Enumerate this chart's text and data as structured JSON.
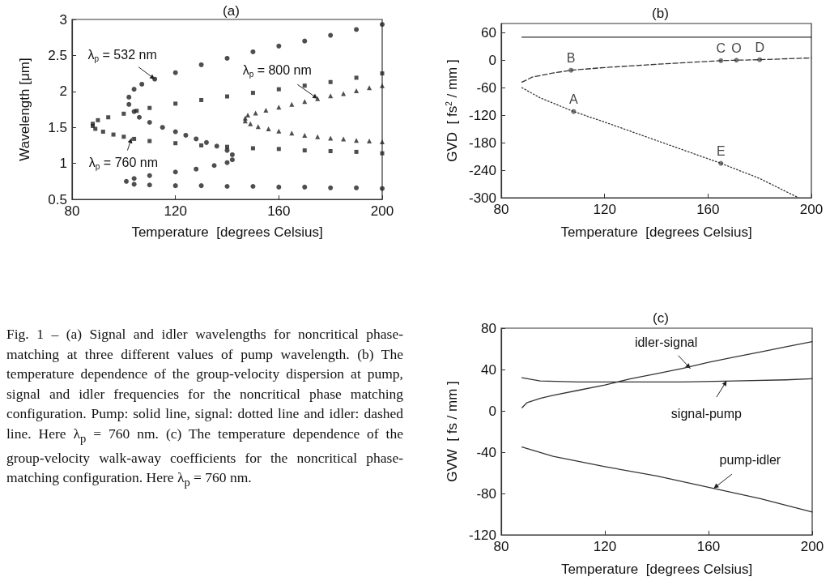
{
  "chart_data": [
    {
      "type": "scatter",
      "title": "(a)",
      "xlabel": "Temperature  [degrees Celsius]",
      "ylabel": "Wavelength [μm]",
      "xlim": [
        80,
        200
      ],
      "xticks": [
        80,
        120,
        160,
        200
      ],
      "ylim": [
        0.5,
        3.0
      ],
      "yticks": [
        0.5,
        1.0,
        1.5,
        2.0,
        2.5,
        3.0
      ],
      "grid": false,
      "series": [
        {
          "color": "#222222",
          "marker": "circle",
          "x": [
            200,
            190,
            180,
            170,
            160,
            150,
            140,
            130,
            120,
            110,
            104,
            101,
            104,
            110,
            120,
            128,
            135,
            140,
            142,
            142,
            140,
            136,
            132,
            128,
            124,
            120,
            115,
            110,
            106,
            104,
            102,
            102,
            104,
            107,
            112,
            120,
            130,
            140,
            150,
            160,
            170,
            180,
            190,
            200
          ],
          "values": [
            0.65,
            0.66,
            0.66,
            0.67,
            0.67,
            0.68,
            0.68,
            0.69,
            0.69,
            0.7,
            0.71,
            0.75,
            0.79,
            0.83,
            0.88,
            0.92,
            0.97,
            1.01,
            1.05,
            1.12,
            1.18,
            1.24,
            1.29,
            1.34,
            1.39,
            1.44,
            1.5,
            1.57,
            1.64,
            1.72,
            1.82,
            1.92,
            2.03,
            2.1,
            2.17,
            2.26,
            2.37,
            2.46,
            2.55,
            2.63,
            2.7,
            2.78,
            2.86,
            2.93
          ]
        },
        {
          "color": "#222222",
          "marker": "square",
          "x": [
            200,
            190,
            180,
            170,
            160,
            150,
            140,
            130,
            120,
            110,
            104,
            100,
            96,
            92,
            89,
            88,
            88,
            90,
            94,
            100,
            105,
            110,
            120,
            130,
            140,
            150,
            160,
            170,
            180,
            190,
            200
          ],
          "values": [
            1.14,
            1.16,
            1.17,
            1.18,
            1.2,
            1.21,
            1.23,
            1.25,
            1.28,
            1.31,
            1.34,
            1.37,
            1.4,
            1.44,
            1.48,
            1.52,
            1.55,
            1.6,
            1.64,
            1.69,
            1.73,
            1.77,
            1.83,
            1.88,
            1.93,
            1.98,
            2.03,
            2.08,
            2.13,
            2.19,
            2.25
          ]
        },
        {
          "color": "#222222",
          "marker": "triangle",
          "x": [
            200,
            195,
            190,
            185,
            180,
            175,
            170,
            165,
            160,
            156,
            152,
            149,
            147,
            147,
            148,
            151,
            155,
            160,
            165,
            170,
            175,
            180,
            185,
            190,
            195,
            200
          ],
          "values": [
            1.3,
            1.31,
            1.32,
            1.34,
            1.35,
            1.37,
            1.39,
            1.42,
            1.45,
            1.48,
            1.51,
            1.55,
            1.59,
            1.63,
            1.67,
            1.7,
            1.74,
            1.78,
            1.82,
            1.86,
            1.9,
            1.94,
            1.97,
            2.01,
            2.05,
            2.08
          ]
        }
      ],
      "annotations": [
        {
          "text": "λ$_{p}$ = 532 nm",
          "x": 112,
          "y": 2.17
        },
        {
          "text": "λ$_{p}$ = 800 nm",
          "x": 175,
          "y": 1.9
        },
        {
          "text": "λ$_{p}$ = 760 nm",
          "x": 103,
          "y": 1.35
        }
      ]
    },
    {
      "type": "line",
      "title": "(b)",
      "xlabel": "Temperature  [degrees Celsius]",
      "ylabel": "GVD  [ fs$^{2}$ / mm ]",
      "xlim": [
        80,
        200
      ],
      "xticks": [
        80,
        120,
        160,
        200
      ],
      "ylim": [
        -300,
        80
      ],
      "yticks": [
        -300,
        -240,
        -180,
        -120,
        -60,
        0,
        60
      ],
      "grid": false,
      "series": [
        {
          "color": "#333333",
          "line_style": "solid",
          "x": [
            88,
            200
          ],
          "values": [
            50,
            50
          ]
        },
        {
          "color": "#333333",
          "line_style": "dotted",
          "x": [
            88,
            95,
            108,
            120,
            140,
            165,
            180,
            195
          ],
          "values": [
            -60,
            -82,
            -112,
            -135,
            -175,
            -225,
            -258,
            -300
          ]
        },
        {
          "color": "#333333",
          "line_style": "dashed",
          "x": [
            88,
            92,
            100,
            107,
            120,
            140,
            165,
            171,
            180,
            200
          ],
          "values": [
            -48,
            -37,
            -28,
            -22,
            -16,
            -9,
            -1,
            0,
            1,
            5
          ]
        },
        {
          "type": "scatter",
          "color": "#555555",
          "marker": "circle",
          "x": [
            108,
            107,
            165,
            171,
            180,
            165
          ],
          "values": [
            -112,
            -22,
            -1,
            0,
            1,
            -225
          ],
          "value_labels": [
            "A",
            "B",
            "C",
            "O",
            "D",
            "E"
          ]
        }
      ]
    },
    {
      "type": "line",
      "title": "(c)",
      "xlabel": "Temperature  [degrees Celsius]",
      "ylabel": "GVW  [ fs / mm ]",
      "xlim": [
        80,
        200
      ],
      "xticks": [
        80,
        120,
        160,
        200
      ],
      "ylim": [
        -120,
        80
      ],
      "yticks": [
        -120,
        -80,
        -40,
        0,
        40,
        80
      ],
      "grid": false,
      "series": [
        {
          "color": "#333333",
          "line_style": "solid",
          "x": [
            88,
            90,
            95,
            100,
            110,
            120,
            130,
            140,
            150,
            160,
            170,
            180,
            190,
            200
          ],
          "values": [
            3,
            8,
            12,
            15,
            20,
            25,
            31,
            36,
            41,
            47,
            52,
            57,
            62,
            67
          ]
        },
        {
          "color": "#333333",
          "line_style": "solid",
          "x": [
            88,
            95,
            110,
            130,
            150,
            170,
            190,
            200
          ],
          "values": [
            32,
            29,
            28,
            28,
            28,
            29,
            30,
            31
          ]
        },
        {
          "color": "#333333",
          "line_style": "solid",
          "x": [
            88,
            100,
            120,
            140,
            160,
            180,
            200
          ],
          "values": [
            -35,
            -44,
            -54,
            -63,
            -74,
            -85,
            -98
          ]
        }
      ],
      "annotations": [
        {
          "text": "idler-signal",
          "x": 153,
          "y": 41
        },
        {
          "text": "signal-pump",
          "x": 167,
          "y": 29
        },
        {
          "text": "pump-idler",
          "x": 162,
          "y": -75
        }
      ]
    },
    {
      "type": "other",
      "annotations": [
        "Fig. 1 – (a) Signal and idler wavelengths for noncritical phase-matching at three different values of pump wavelength. (b) The temperature dependence of the group-velocity dispersion at pump, signal and idler frequencies for the noncritical phase matching configuration. Pump: solid line, signal: dotted line and idler: dashed line. Here λ$_{p}$ = 760 nm. (c) The temperature dependence of the group-velocity walk-away coefficients for the noncritical phase-matching configuration. Here λ$_{p}$ = 760 nm."
      ]
    }
  ]
}
